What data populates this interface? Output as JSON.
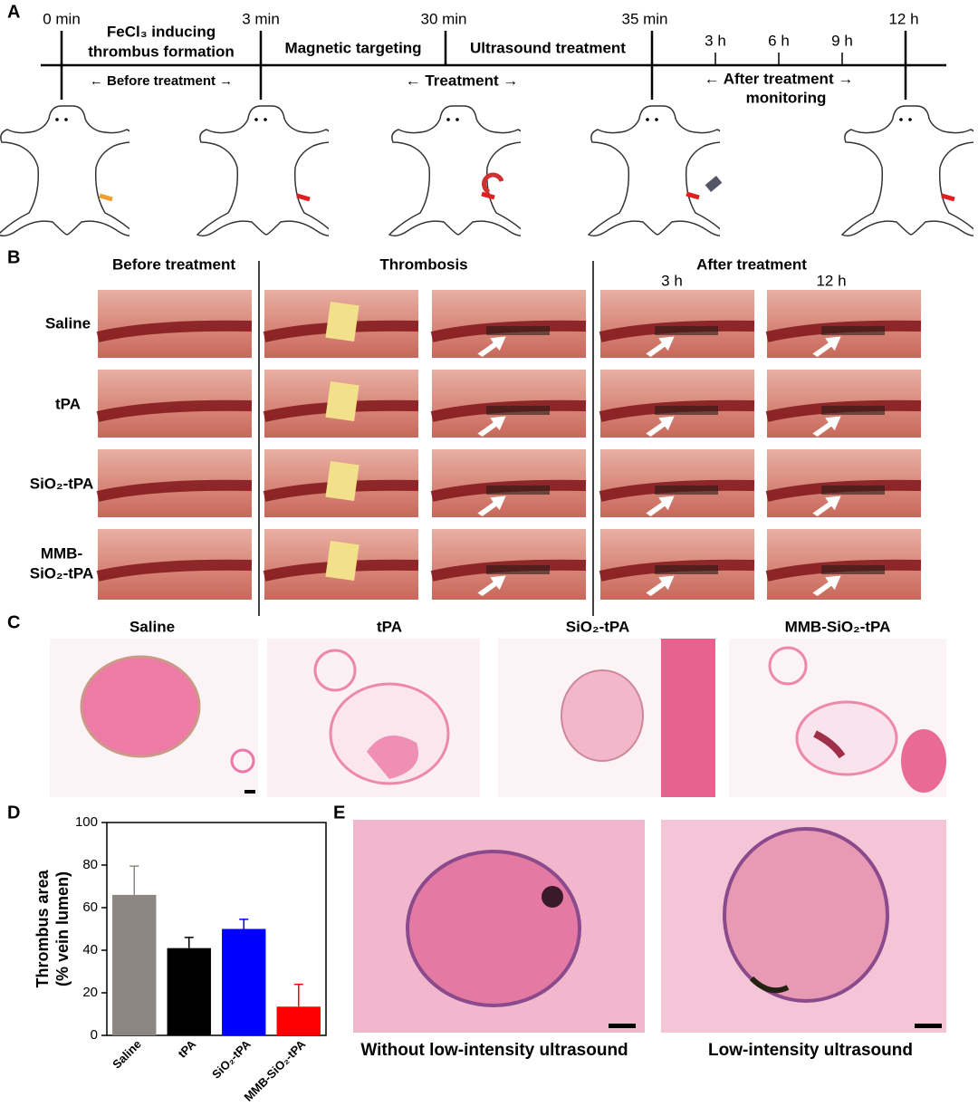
{
  "panel_labels": [
    "A",
    "B",
    "C",
    "D",
    "E"
  ],
  "panel_a": {
    "timepoints": [
      "0 min",
      "3 min",
      "30 min",
      "35 min",
      "3 h",
      "6 h",
      "9 h",
      "12 h"
    ],
    "phases": [
      "FeCl₃ inducing",
      "thrombus formation",
      "Magnetic targeting",
      "Ultrasound treatment"
    ],
    "periods": [
      "← Before treatment →",
      "← Treatment →",
      "← After treatment →",
      "monitoring"
    ]
  },
  "panel_b": {
    "headers": [
      "Before treatment",
      "Thrombosis",
      "After treatment"
    ],
    "time_labels": [
      "3 h",
      "12 h"
    ],
    "rows": [
      [
        "Saline"
      ],
      [
        "tPA"
      ],
      [
        "SiO₂-tPA"
      ],
      [
        "MMB-",
        "SiO₂-tPA"
      ]
    ]
  },
  "panel_c": {
    "titles": [
      "Saline",
      "tPA",
      "SiO₂-tPA",
      "MMB-SiO₂-tPA"
    ]
  },
  "panel_e": {
    "captions": [
      "Without low-intensity ultrasound",
      "Low-intensity ultrasound"
    ]
  },
  "chart_data": {
    "type": "bar",
    "y_label": [
      "Thrombus area",
      "(% vein lumen)"
    ],
    "categories": [
      "Saline",
      "tPA",
      "SiO₂-tPA",
      "MMB-SiO₂-tPA"
    ],
    "values": [
      66,
      41,
      50,
      13.5
    ],
    "errors": [
      13.5,
      5,
      4.5,
      10.5
    ],
    "colors": [
      "#8c8782",
      "#000000",
      "#0000ff",
      "#ff0000"
    ],
    "ylim": [
      0,
      100
    ],
    "yticks": [
      0,
      20,
      40,
      60,
      80,
      100
    ]
  }
}
